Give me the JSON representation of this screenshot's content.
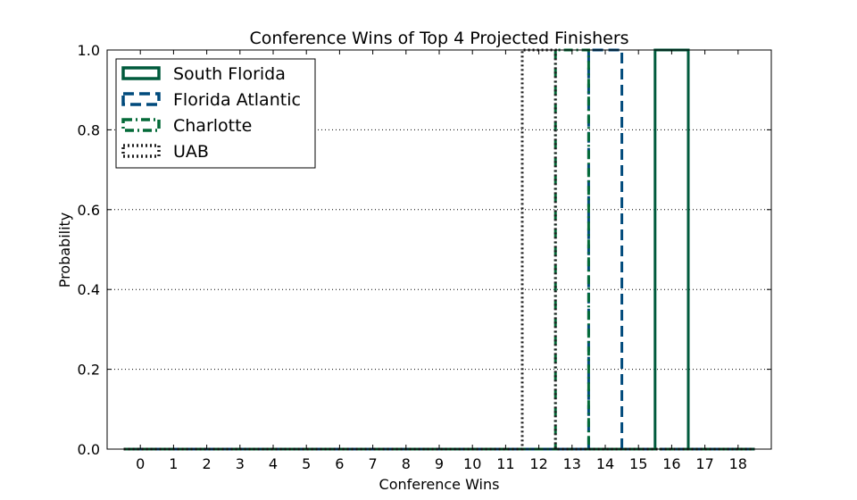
{
  "chart_data": {
    "type": "line",
    "title": "Conference Wins of Top 4 Projected Finishers",
    "xlabel": "Conference Wins",
    "ylabel": "Probability",
    "xlim": [
      -1,
      19
    ],
    "ylim": [
      0,
      1.0
    ],
    "x_ticks": [
      "0",
      "1",
      "2",
      "3",
      "4",
      "5",
      "6",
      "7",
      "8",
      "9",
      "10",
      "11",
      "12",
      "13",
      "14",
      "15",
      "16",
      "17",
      "18"
    ],
    "y_ticks": [
      "0.0",
      "0.2",
      "0.4",
      "0.6",
      "0.8",
      "1.0"
    ],
    "grid": "horizontal-dotted",
    "legend_position": "top-left",
    "series": [
      {
        "name": "South Florida",
        "style": "solid",
        "color": "#005a3c",
        "x": [
          0,
          1,
          2,
          3,
          4,
          5,
          6,
          7,
          8,
          9,
          10,
          11,
          12,
          13,
          14,
          15,
          16,
          17,
          18
        ],
        "values": [
          0,
          0,
          0,
          0,
          0,
          0,
          0,
          0,
          0,
          0,
          0,
          0,
          0,
          0,
          0,
          0,
          1.0,
          0,
          0
        ]
      },
      {
        "name": "Florida Atlantic",
        "style": "dashed",
        "color": "#004a7c",
        "x": [
          0,
          1,
          2,
          3,
          4,
          5,
          6,
          7,
          8,
          9,
          10,
          11,
          12,
          13,
          14,
          15,
          16,
          17,
          18
        ],
        "values": [
          0,
          0,
          0,
          0,
          0,
          0,
          0,
          0,
          0,
          0,
          0,
          0,
          0,
          0,
          1.0,
          0,
          0,
          0,
          0
        ]
      },
      {
        "name": "Charlotte",
        "style": "dashdot",
        "color": "#046a38",
        "x": [
          0,
          1,
          2,
          3,
          4,
          5,
          6,
          7,
          8,
          9,
          10,
          11,
          12,
          13,
          14,
          15,
          16,
          17,
          18
        ],
        "values": [
          0,
          0,
          0,
          0,
          0,
          0,
          0,
          0,
          0,
          0,
          0,
          0,
          0,
          1.0,
          0,
          0,
          0,
          0,
          0
        ]
      },
      {
        "name": "UAB",
        "style": "dotted",
        "color": "#1e1e1e",
        "x": [
          0,
          1,
          2,
          3,
          4,
          5,
          6,
          7,
          8,
          9,
          10,
          11,
          12,
          13,
          14,
          15,
          16,
          17,
          18
        ],
        "values": [
          0,
          0,
          0,
          0,
          0,
          0,
          0,
          0,
          0,
          0,
          0,
          0,
          1.0,
          0,
          0,
          0,
          0,
          0,
          0
        ]
      }
    ]
  }
}
